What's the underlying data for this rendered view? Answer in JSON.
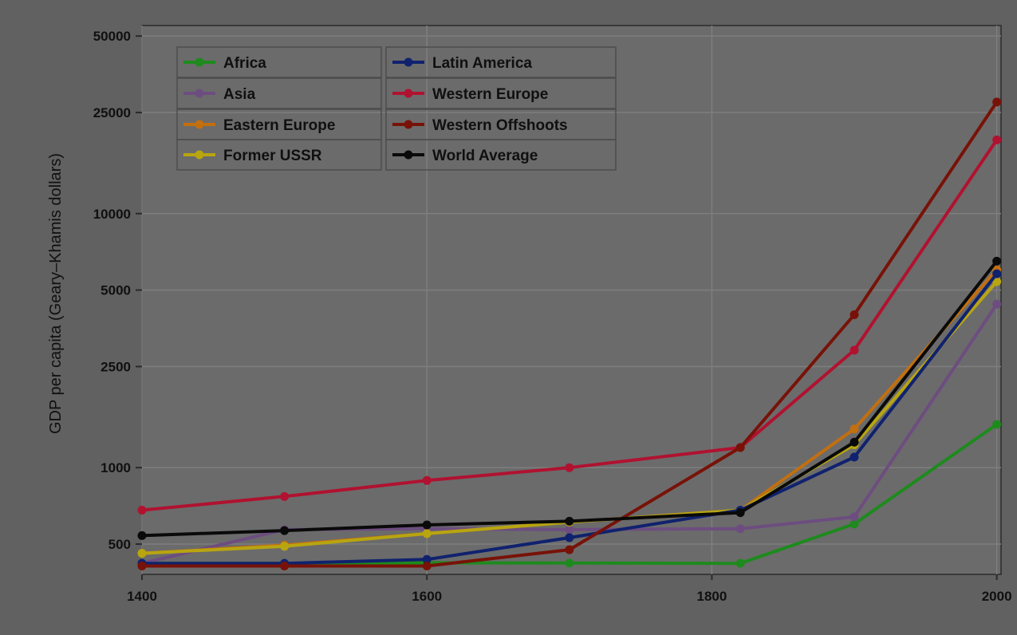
{
  "chart_data": {
    "type": "line",
    "title": "",
    "xlabel": "",
    "ylabel": "GDP per capita (Geary–Khamis dollars)",
    "y_scale": "log",
    "xlim": [
      1400,
      2003
    ],
    "ylim": [
      380,
      55000
    ],
    "x_ticks": [
      1400,
      1600,
      1800,
      2000
    ],
    "x_tick_labels": [
      "1400",
      "1600",
      "1800",
      "2000"
    ],
    "y_ticks": [
      500,
      1000,
      2500,
      5000,
      10000,
      25000,
      50000
    ],
    "y_tick_labels": [
      "500",
      "1000",
      "2500",
      "5000",
      "10000",
      "25000",
      "50000"
    ],
    "grid": true,
    "legend_position": "top-left",
    "series": [
      {
        "name": "Africa",
        "color": "#1e8a1e",
        "points": [
          [
            1400,
            420
          ],
          [
            1500,
            420
          ],
          [
            1600,
            422
          ],
          [
            1700,
            421
          ],
          [
            1820,
            420
          ],
          [
            1900,
            600
          ],
          [
            2000,
            1480
          ]
        ]
      },
      {
        "name": "Asia",
        "color": "#6d4d80",
        "points": [
          [
            1400,
            420
          ],
          [
            1500,
            570
          ],
          [
            1600,
            575
          ],
          [
            1700,
            570
          ],
          [
            1820,
            575
          ],
          [
            1900,
            640
          ],
          [
            2000,
            4400
          ]
        ]
      },
      {
        "name": "Eastern Europe",
        "color": "#c26f10",
        "points": [
          [
            1400,
            460
          ],
          [
            1500,
            495
          ],
          [
            1600,
            550
          ],
          [
            1700,
            610
          ],
          [
            1820,
            680
          ],
          [
            1900,
            1420
          ],
          [
            2000,
            6000
          ]
        ]
      },
      {
        "name": "Former USSR",
        "color": "#b8a510",
        "points": [
          [
            1400,
            460
          ],
          [
            1500,
            490
          ],
          [
            1600,
            550
          ],
          [
            1700,
            610
          ],
          [
            1820,
            680
          ],
          [
            1900,
            1230
          ],
          [
            2000,
            5400
          ]
        ]
      },
      {
        "name": "Latin America",
        "color": "#10226e",
        "points": [
          [
            1400,
            420
          ],
          [
            1500,
            420
          ],
          [
            1600,
            435
          ],
          [
            1700,
            530
          ],
          [
            1820,
            680
          ],
          [
            1900,
            1100
          ],
          [
            2000,
            5800
          ]
        ]
      },
      {
        "name": "Western Europe",
        "color": "#b01230",
        "points": [
          [
            1400,
            680
          ],
          [
            1500,
            770
          ],
          [
            1600,
            890
          ],
          [
            1700,
            1000
          ],
          [
            1820,
            1200
          ],
          [
            1900,
            2900
          ],
          [
            2000,
            19500
          ]
        ]
      },
      {
        "name": "Western Offshoots",
        "color": "#781208",
        "points": [
          [
            1400,
            410
          ],
          [
            1500,
            410
          ],
          [
            1600,
            410
          ],
          [
            1700,
            475
          ],
          [
            1820,
            1200
          ],
          [
            1900,
            4000
          ],
          [
            2000,
            27500
          ]
        ]
      },
      {
        "name": "World Average",
        "color": "#0a0a0a",
        "points": [
          [
            1400,
            540
          ],
          [
            1500,
            565
          ],
          [
            1600,
            595
          ],
          [
            1700,
            615
          ],
          [
            1820,
            665
          ],
          [
            1900,
            1260
          ],
          [
            2000,
            6500
          ]
        ]
      }
    ]
  }
}
